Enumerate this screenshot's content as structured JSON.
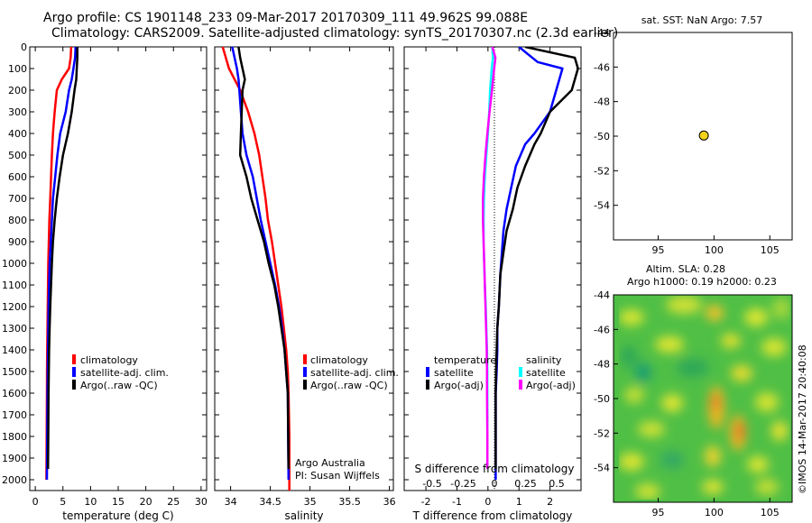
{
  "header": {
    "line1": "Argo profile: CS 1901148_233 09-Mar-2017 20170309_111 49.962S 99.088E",
    "line2": "Climatology: CARS2009. Satellite-adjusted climatology: synTS_20170307.nc (2.3d earlier)"
  },
  "panels": {
    "temperature": {
      "xlabel": "temperature (deg C)",
      "xticks": [
        "0",
        "5",
        "10",
        "15",
        "20",
        "25",
        "30"
      ],
      "legend": [
        "climatology",
        "satellite-adj. clim.",
        "Argo(..raw -QC)"
      ]
    },
    "salinity": {
      "xlabel": "salinity",
      "xticks": [
        "34",
        "34.5",
        "35",
        "35.5",
        "36"
      ],
      "legend": [
        "climatology",
        "satellite-adj. clim.",
        "Argo(..raw -QC)"
      ],
      "credit1": "Argo Australia",
      "credit2": "PI: Susan Wijffels"
    },
    "difference": {
      "xlabel": "T difference from climatology",
      "top_label": "S difference from climatology",
      "xticks": [
        "-2",
        "-1",
        "0",
        "1",
        "2"
      ],
      "sticks": [
        "-0.5",
        "-0.25",
        "0",
        "0.25",
        "0.5"
      ],
      "legend_temp_title": "temperature",
      "legend_sal_title": "salinity",
      "legend_temp": [
        "satellite",
        "Argo(-adj)"
      ],
      "legend_sal": [
        "satellite",
        "Argo(-adj)"
      ]
    },
    "sst_map": {
      "title": "sat. SST: NaN Argo: 7.57",
      "xticks": [
        "95",
        "100",
        "105"
      ],
      "yticks": [
        "-44",
        "-46",
        "-48",
        "-50",
        "-52",
        "-54"
      ]
    },
    "sla_map": {
      "title1": "Altim. SLA: 0.28",
      "title2": "Argo h1000: 0.19 h2000: 0.23",
      "xticks": [
        "95",
        "100",
        "105"
      ],
      "yticks": [
        "-44",
        "-46",
        "-48",
        "-50",
        "-52",
        "-54"
      ],
      "stamp": "©IMOS 14-Mar-2017 20:40:08"
    }
  },
  "depth_ticks": [
    "0",
    "100",
    "200",
    "300",
    "400",
    "500",
    "600",
    "700",
    "800",
    "900",
    "1000",
    "1100",
    "1200",
    "1300",
    "1400",
    "1500",
    "1600",
    "1700",
    "1800",
    "1900",
    "2000"
  ],
  "colors": {
    "climatology": "#ff0000",
    "satellite": "#0000ff",
    "argo": "#000000",
    "sal_sat": "#00ffff",
    "sal_argo": "#ff00ff",
    "float": "#f2d21b"
  },
  "chart_data": [
    {
      "type": "line",
      "xlabel": "temperature (deg C)",
      "xlim": [
        -1,
        31
      ],
      "ylim": [
        2050,
        0
      ],
      "series": [
        {
          "name": "climatology",
          "x": [
            6.5,
            6.4,
            6.1,
            4.8,
            3.9,
            3.5,
            3.2,
            3.0,
            2.85,
            2.7,
            2.55,
            2.45,
            2.35,
            2.3,
            2.25,
            2.2,
            2.15,
            2.12,
            2.1,
            2.05,
            2.0
          ],
          "y": [
            0,
            50,
            100,
            150,
            200,
            300,
            400,
            500,
            600,
            700,
            800,
            900,
            1000,
            1100,
            1200,
            1300,
            1400,
            1500,
            1600,
            1800,
            2000
          ]
        },
        {
          "name": "satellite-adj. clim.",
          "x": [
            7.3,
            7.2,
            6.9,
            6.6,
            6.1,
            5.5,
            4.5,
            4.0,
            3.6,
            3.2,
            3.0,
            2.8,
            2.6,
            2.5,
            2.4,
            2.35,
            2.3,
            2.25,
            2.2,
            2.1
          ],
          "y": [
            0,
            50,
            100,
            150,
            200,
            300,
            400,
            500,
            600,
            700,
            800,
            900,
            1000,
            1100,
            1200,
            1300,
            1400,
            1500,
            1600,
            2000
          ]
        },
        {
          "name": "Argo(..raw -QC)",
          "x": [
            7.6,
            7.6,
            7.5,
            7.4,
            7.1,
            6.6,
            5.9,
            5.0,
            4.4,
            3.9,
            3.5,
            3.2,
            3.0,
            2.85,
            2.7,
            2.6,
            2.5,
            2.45,
            2.4,
            2.35,
            2.3
          ],
          "y": [
            0,
            50,
            100,
            150,
            200,
            300,
            400,
            500,
            600,
            700,
            800,
            900,
            1000,
            1100,
            1200,
            1300,
            1400,
            1500,
            1600,
            1800,
            1950
          ]
        }
      ]
    },
    {
      "type": "line",
      "xlabel": "salinity",
      "xlim": [
        33.8,
        36.05
      ],
      "ylim": [
        2050,
        0
      ],
      "series": [
        {
          "name": "climatology",
          "x": [
            33.9,
            33.94,
            33.98,
            34.05,
            34.12,
            34.22,
            34.3,
            34.36,
            34.4,
            34.44,
            34.47,
            34.52,
            34.56,
            34.6,
            34.64,
            34.67,
            34.7,
            34.72,
            34.73,
            34.74,
            34.74
          ],
          "y": [
            0,
            50,
            100,
            150,
            200,
            300,
            400,
            500,
            600,
            700,
            800,
            900,
            1000,
            1100,
            1200,
            1300,
            1400,
            1500,
            1600,
            1800,
            2050
          ]
        },
        {
          "name": "satellite-adj. clim.",
          "x": [
            34.02,
            34.05,
            34.08,
            34.1,
            34.11,
            34.13,
            34.15,
            34.2,
            34.28,
            34.33,
            34.38,
            34.44,
            34.5,
            34.56,
            34.61,
            34.65,
            34.68,
            34.7,
            34.72,
            34.73
          ],
          "y": [
            0,
            50,
            100,
            150,
            200,
            300,
            400,
            500,
            600,
            700,
            800,
            900,
            1000,
            1100,
            1200,
            1300,
            1400,
            1500,
            1600,
            2000
          ]
        },
        {
          "name": "Argo(..raw -QC)",
          "x": [
            34.1,
            34.12,
            34.15,
            34.18,
            34.15,
            34.14,
            34.13,
            34.12,
            34.2,
            34.26,
            34.34,
            34.42,
            34.48,
            34.55,
            34.6,
            34.64,
            34.68,
            34.7,
            34.72,
            34.73
          ],
          "y": [
            0,
            50,
            100,
            150,
            200,
            300,
            400,
            500,
            600,
            700,
            800,
            900,
            1000,
            1100,
            1200,
            1300,
            1400,
            1500,
            1600,
            1950
          ]
        }
      ]
    },
    {
      "type": "line",
      "xlabel": "T difference from climatology",
      "xlim": [
        -2.7,
        3.0
      ],
      "ylim": [
        2050,
        0
      ],
      "series": [
        {
          "name": "temperature satellite",
          "x": [
            1.0,
            1.6,
            2.4,
            2.2,
            2.0,
            1.5,
            1.2,
            0.9,
            0.75,
            0.6,
            0.5,
            0.45,
            0.4,
            0.35,
            0.3,
            0.3,
            0.28,
            0.25,
            0.25,
            0.25
          ],
          "y": [
            0,
            70,
            100,
            200,
            300,
            400,
            450,
            550,
            650,
            750,
            850,
            950,
            1050,
            1200,
            1300,
            1400,
            1500,
            1600,
            1800,
            2000
          ]
        },
        {
          "name": "temperature Argo(-adj)",
          "x": [
            1.2,
            2.8,
            2.9,
            2.7,
            2.0,
            1.7,
            1.5,
            1.2,
            0.95,
            0.8,
            0.6,
            0.5,
            0.4,
            0.35,
            0.3,
            0.28,
            0.26,
            0.25,
            0.25,
            0.25
          ],
          "y": [
            0,
            50,
            100,
            200,
            300,
            400,
            450,
            550,
            650,
            750,
            850,
            950,
            1050,
            1200,
            1300,
            1400,
            1500,
            1600,
            1800,
            1950
          ]
        },
        {
          "name": "salinity satellite",
          "x": [
            0.14,
            0.16,
            0.12,
            0.07,
            0.04,
            0.0,
            -0.05,
            -0.1,
            -0.13,
            -0.14,
            -0.14,
            -0.12,
            -0.1,
            -0.07,
            -0.05,
            -0.03,
            -0.02,
            -0.02,
            -0.02,
            -0.02
          ],
          "y": [
            0,
            50,
            100,
            200,
            300,
            400,
            500,
            600,
            700,
            800,
            900,
            1000,
            1100,
            1200,
            1300,
            1400,
            1500,
            1600,
            1800,
            1950
          ]
        },
        {
          "name": "salinity Argo(-adj)",
          "x": [
            0.14,
            0.24,
            0.2,
            0.13,
            0.05,
            -0.02,
            -0.08,
            -0.13,
            -0.16,
            -0.16,
            -0.14,
            -0.12,
            -0.1,
            -0.08,
            -0.06,
            -0.04,
            -0.03,
            -0.03,
            -0.02,
            -0.02
          ],
          "y": [
            0,
            50,
            100,
            200,
            300,
            400,
            500,
            600,
            700,
            800,
            900,
            1000,
            1100,
            1200,
            1300,
            1400,
            1500,
            1600,
            1800,
            1950
          ]
        }
      ]
    },
    {
      "type": "scatter",
      "title": "sat. SST: NaN Argo: 7.57",
      "xlim": [
        91,
        107
      ],
      "ylim": [
        -56,
        -44
      ],
      "points": [
        {
          "x": 99.088,
          "y": -49.962
        }
      ]
    }
  ]
}
